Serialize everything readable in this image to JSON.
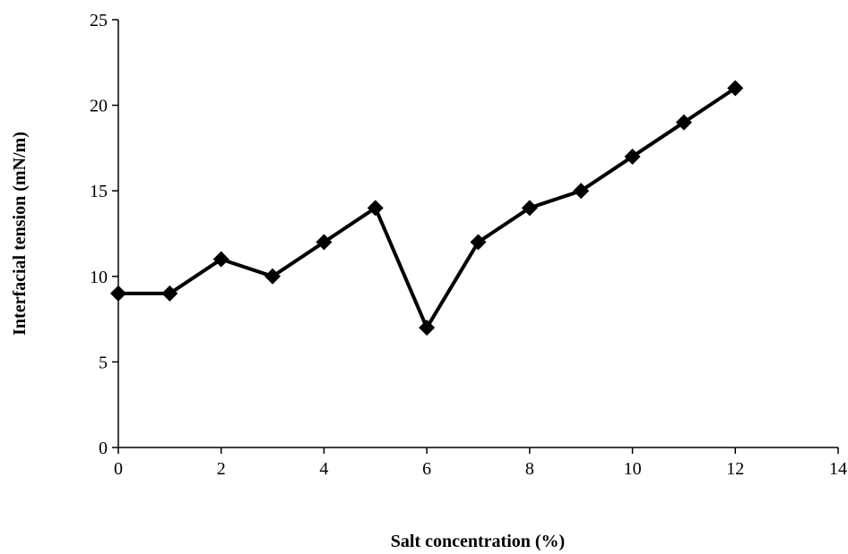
{
  "chart_data": {
    "type": "line",
    "x_label": "Salt concentration (%)",
    "y_label": "Interfacial tension (mN/m)",
    "x": [
      0,
      1,
      2,
      3,
      4,
      5,
      6,
      7,
      8,
      9,
      10,
      11,
      12
    ],
    "series": [
      {
        "name": "Interfacial tension",
        "color": "#000000",
        "values": [
          9,
          9,
          11,
          10,
          12,
          14,
          7,
          12,
          14,
          15,
          17,
          19,
          21
        ]
      }
    ],
    "xlim": [
      0,
      14
    ],
    "xticks": [
      0,
      2,
      4,
      6,
      8,
      10,
      12,
      14
    ],
    "ylim": [
      0,
      25
    ],
    "yticks": [
      0,
      5,
      10,
      15,
      20,
      25
    ],
    "grid": false,
    "marker": "diamond"
  }
}
